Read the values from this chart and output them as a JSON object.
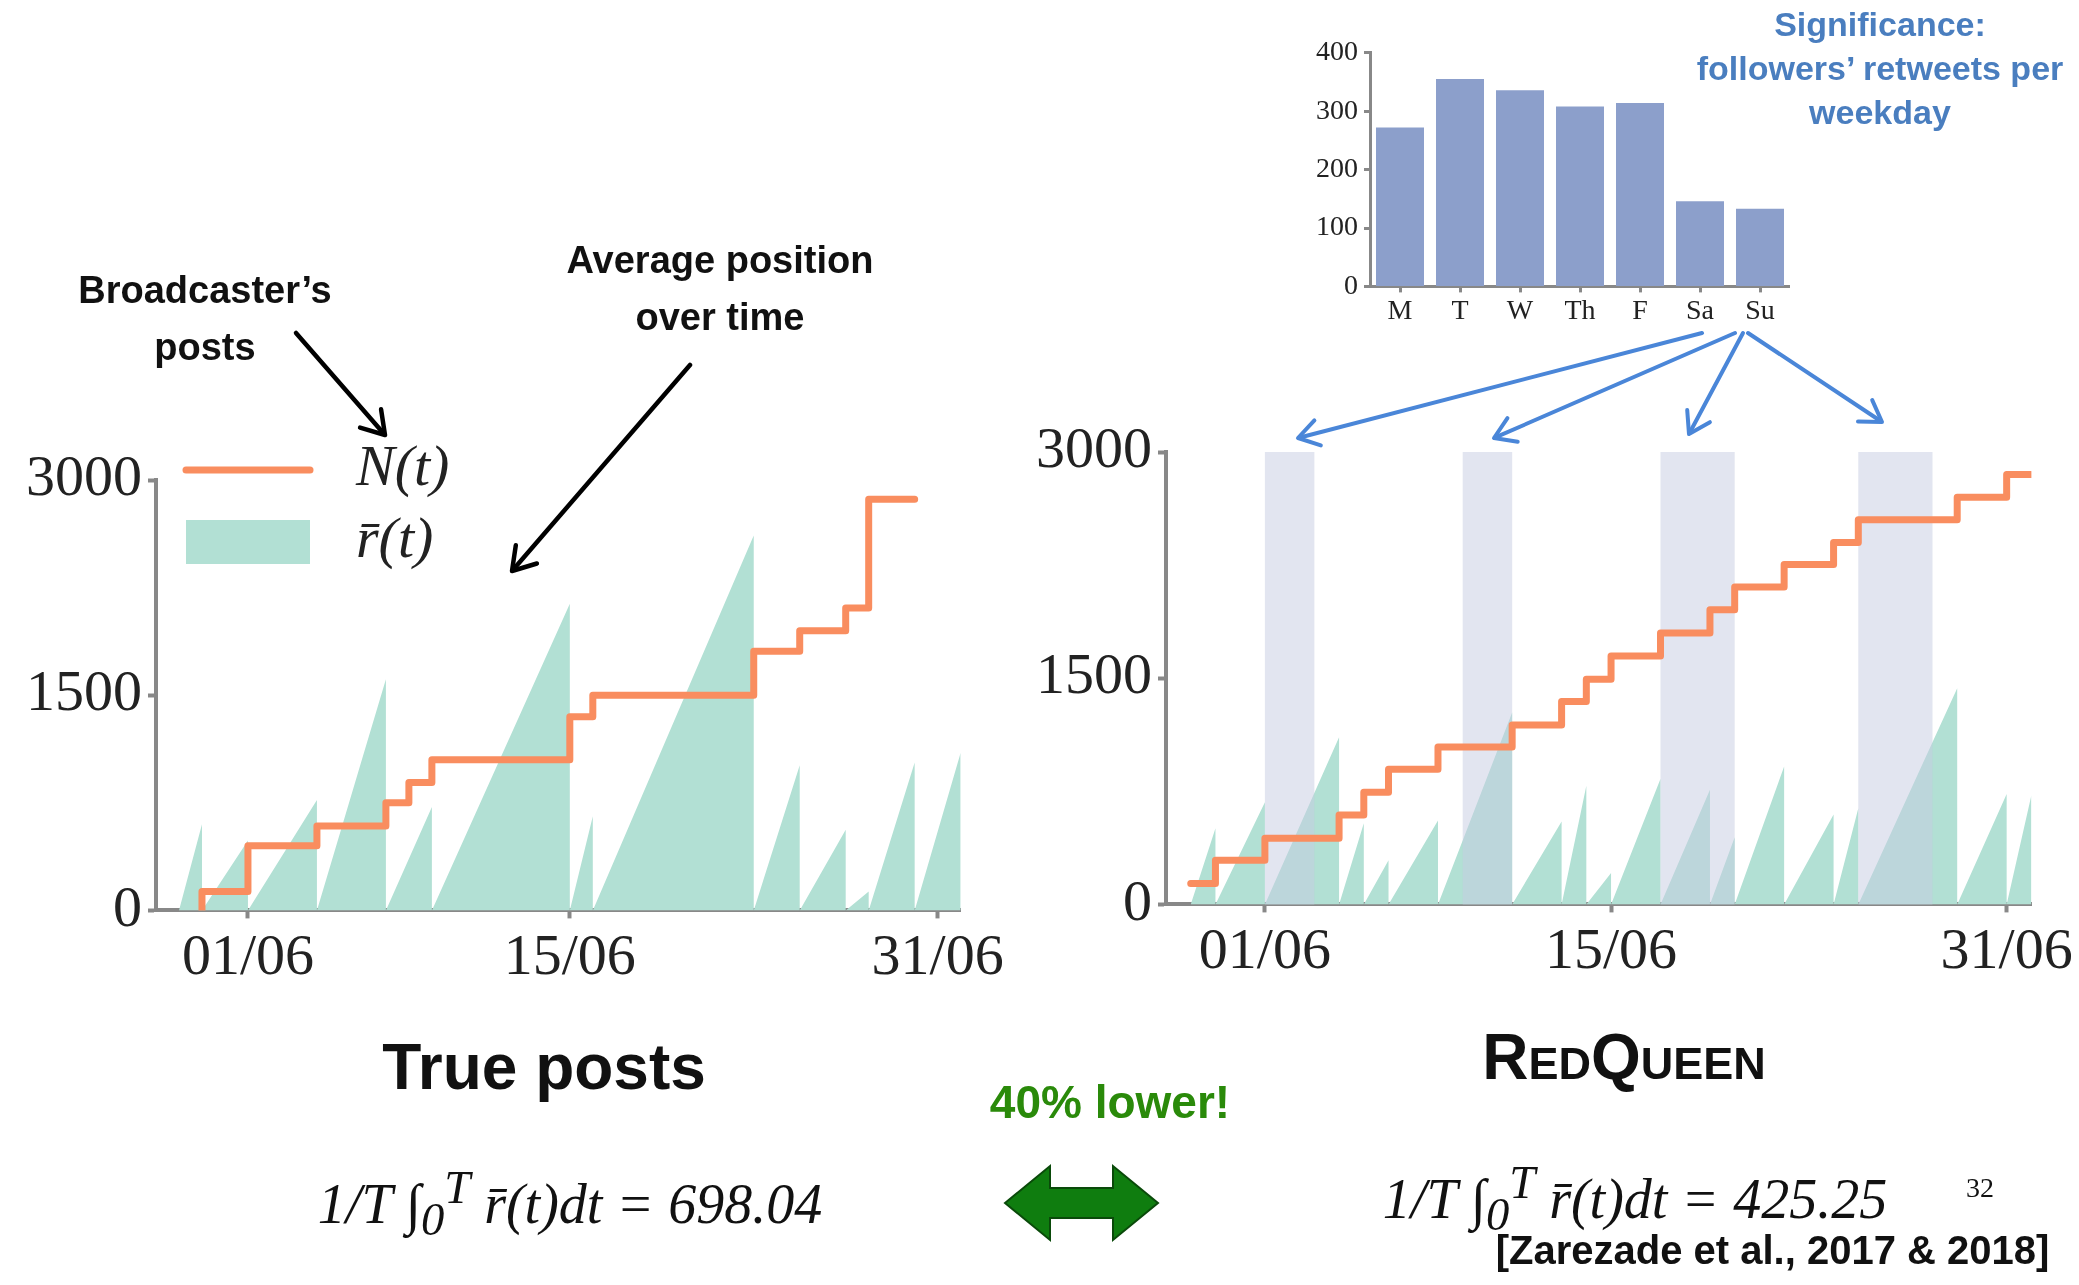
{
  "chart_data": [
    {
      "type": "bar",
      "title": "Significance: followers’ retweets per weekday",
      "categories": [
        "M",
        "T",
        "W",
        "Th",
        "F",
        "Sa",
        "Su"
      ],
      "values": [
        272,
        355,
        336,
        308,
        314,
        146,
        133
      ],
      "color": "#8c9fcb",
      "ylim": [
        0,
        400
      ],
      "yticks": [
        0,
        100,
        200,
        300,
        400
      ],
      "grid": false
    },
    {
      "type": "step",
      "title": "True posts",
      "xlim": [
        "--05-28",
        "--07-02"
      ],
      "xticks": [
        {
          "value": "--06-01",
          "label": "01/06"
        },
        {
          "value": "--06-15",
          "label": "15/06"
        },
        {
          "value": "--07-01",
          "label": "31/06"
        }
      ],
      "ylim": [
        0,
        3000
      ],
      "yticks": [
        0,
        1500,
        3000
      ],
      "grid": false,
      "legend": "top left",
      "series": [
        {
          "name": "N(t)",
          "type": "step",
          "color": "#f98d5f",
          "x": [
            "--05-30",
            "--05-30",
            "--06-01",
            "--06-04",
            "--06-07",
            "--06-08",
            "--06-09",
            "--06-15",
            "--06-16",
            "--06-23",
            "--06-25",
            "--06-27",
            "--06-28",
            "--06-30"
          ],
          "values": [
            0,
            131,
            450,
            589,
            750,
            892,
            1050,
            1350,
            1500,
            1807,
            1950,
            2107,
            2865,
            2865
          ]
        },
        {
          "name": "r̄(t)",
          "type": "area",
          "color": "#b2e0d4",
          "x": [
            "--05-29",
            "--05-30",
            "--05-30",
            "--05-30",
            "--06-01",
            "--06-01",
            "--06-01",
            "--06-04",
            "--06-04",
            "--06-04",
            "--06-07",
            "--06-07",
            "--06-07",
            "--06-09",
            "--06-09",
            "--06-09",
            "--06-15",
            "--06-15",
            "--06-15",
            "--06-16",
            "--06-16",
            "--06-16",
            "--06-23",
            "--06-23",
            "--06-23",
            "--06-25",
            "--06-25",
            "--06-25",
            "--06-27",
            "--06-27",
            "--06-27",
            "--06-28",
            "--06-28",
            "--06-28",
            "--06-30",
            "--06-30",
            "--06-30",
            "--07-02"
          ],
          "values": [
            0,
            600,
            0,
            0,
            488,
            0,
            0,
            769,
            0,
            0,
            1612,
            0,
            0,
            720,
            0,
            0,
            2137,
            0,
            0,
            656,
            0,
            0,
            2614,
            0,
            0,
            1012,
            0,
            0,
            562,
            0,
            0,
            131,
            0,
            0,
            1031,
            0,
            0,
            1099
          ]
        }
      ],
      "annotations": [
        "Broadcaster’s posts",
        "Average position over time",
        "1/T ∫$_{0}$$^{T}$ r̄(t)dt = 698.04"
      ]
    },
    {
      "type": "step",
      "title": "RedQueen",
      "xlim": [
        "--05-28",
        "--07-02"
      ],
      "xticks": [
        {
          "value": "--06-01",
          "label": "01/06"
        },
        {
          "value": "--06-15",
          "label": "15/06"
        },
        {
          "value": "--07-01",
          "label": "31/06"
        }
      ],
      "ylim": [
        0,
        3000
      ],
      "yticks": [
        0,
        1500,
        3000
      ],
      "grid": false,
      "series": [
        {
          "type": "step",
          "color": "#f98d5f",
          "x": [
            "--05-29",
            "--05-30",
            "--06-01",
            "--06-04",
            "--06-05",
            "--06-06",
            "--06-08",
            "--06-11",
            "--06-13",
            "--06-14",
            "--06-15",
            "--06-17",
            "--06-19",
            "--06-20",
            "--06-22",
            "--06-24",
            "--06-25",
            "--06-29",
            "--07-01",
            "--07-02"
          ],
          "values": [
            139,
            293,
            439,
            593,
            743,
            896,
            1043,
            1189,
            1346,
            1493,
            1647,
            1800,
            1954,
            2104,
            2254,
            2400,
            2550,
            2700,
            2850,
            2850
          ]
        },
        {
          "type": "area",
          "color": "#b2e0d4",
          "x": [
            "--05-29",
            "--05-30",
            "--05-30",
            "--05-30",
            "--06-01",
            "--06-01",
            "--06-01",
            "--06-04",
            "--06-04",
            "--06-04",
            "--06-05",
            "--06-05",
            "--06-05",
            "--06-06",
            "--06-06",
            "--06-06",
            "--06-08",
            "--06-08",
            "--06-08",
            "--06-11",
            "--06-11",
            "--06-11",
            "--06-13",
            "--06-13",
            "--06-13",
            "--06-14",
            "--06-14",
            "--06-14",
            "--06-15",
            "--06-15",
            "--06-15",
            "--06-17",
            "--06-17",
            "--06-17",
            "--06-19",
            "--06-19",
            "--06-19",
            "--06-20",
            "--06-20",
            "--06-20",
            "--06-22",
            "--06-22",
            "--06-22",
            "--06-24",
            "--06-24",
            "--06-24",
            "--06-25",
            "--06-25",
            "--06-25",
            "--06-29",
            "--06-29",
            "--06-29",
            "--07-01",
            "--07-01",
            "--07-01",
            "--07-02"
          ],
          "values": [
            0,
            505,
            0,
            0,
            677,
            0,
            0,
            1109,
            0,
            0,
            538,
            0,
            0,
            293,
            0,
            0,
            556,
            0,
            0,
            1273,
            0,
            0,
            549,
            0,
            0,
            787,
            0,
            0,
            209,
            0,
            0,
            834,
            0,
            0,
            761,
            0,
            0,
            446,
            0,
            0,
            915,
            0,
            0,
            596,
            0,
            0,
            637,
            0,
            0,
            1434,
            0,
            0,
            732,
            0,
            0,
            724
          ]
        }
      ],
      "bands": [
        {
          "axis": "x",
          "from": "--06-01",
          "to": "--06-03",
          "color": "#c6cce2"
        },
        {
          "axis": "x",
          "from": "--06-09",
          "to": "--06-11",
          "color": "#c6cce2"
        },
        {
          "axis": "x",
          "from": "--06-17",
          "to": "--06-20",
          "color": "#c6cce2"
        },
        {
          "axis": "x",
          "from": "--06-25",
          "to": "--06-28",
          "color": "#c6cce2"
        }
      ],
      "annotations": [
        "40% lower!",
        "1/T ∫$_{0}$$^{T}$ r̄(t)dt = 425.25",
        "[Zarezade et al., 2017 & 2018]",
        "32"
      ]
    }
  ]
}
